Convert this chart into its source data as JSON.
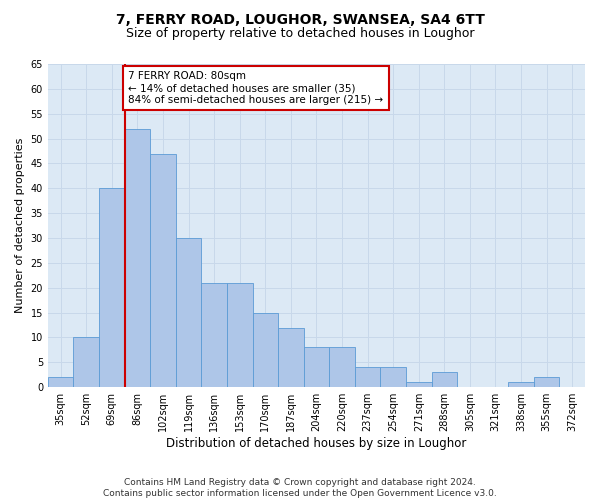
{
  "title": "7, FERRY ROAD, LOUGHOR, SWANSEA, SA4 6TT",
  "subtitle": "Size of property relative to detached houses in Loughor",
  "xlabel": "Distribution of detached houses by size in Loughor",
  "ylabel": "Number of detached properties",
  "categories": [
    "35sqm",
    "52sqm",
    "69sqm",
    "86sqm",
    "102sqm",
    "119sqm",
    "136sqm",
    "153sqm",
    "170sqm",
    "187sqm",
    "204sqm",
    "220sqm",
    "237sqm",
    "254sqm",
    "271sqm",
    "288sqm",
    "305sqm",
    "321sqm",
    "338sqm",
    "355sqm",
    "372sqm"
  ],
  "values": [
    2,
    10,
    40,
    52,
    47,
    30,
    21,
    21,
    15,
    12,
    8,
    8,
    4,
    4,
    1,
    3,
    0,
    0,
    1,
    2,
    0
  ],
  "bar_color": "#aec6e8",
  "bar_edge_color": "#5b9bd5",
  "annotation_text": "7 FERRY ROAD: 80sqm\n← 14% of detached houses are smaller (35)\n84% of semi-detached houses are larger (215) →",
  "annotation_box_color": "#ffffff",
  "annotation_box_edge": "#cc0000",
  "vline_color": "#cc0000",
  "ylim": [
    0,
    65
  ],
  "yticks": [
    0,
    5,
    10,
    15,
    20,
    25,
    30,
    35,
    40,
    45,
    50,
    55,
    60,
    65
  ],
  "grid_color": "#c8d8ea",
  "background_color": "#dce9f5",
  "footer_text": "Contains HM Land Registry data © Crown copyright and database right 2024.\nContains public sector information licensed under the Open Government Licence v3.0.",
  "title_fontsize": 10,
  "subtitle_fontsize": 9,
  "xlabel_fontsize": 8.5,
  "ylabel_fontsize": 8,
  "tick_fontsize": 7,
  "annotation_fontsize": 7.5,
  "footer_fontsize": 6.5
}
